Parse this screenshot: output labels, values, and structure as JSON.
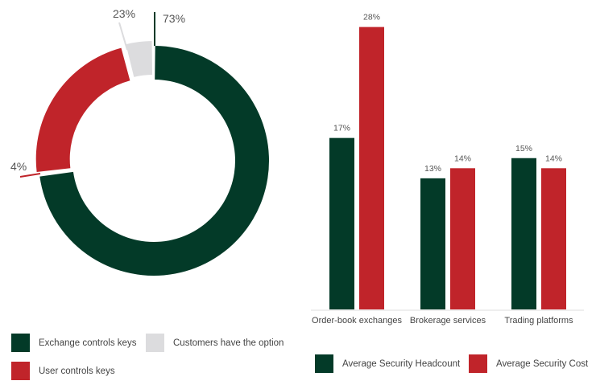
{
  "chart_data": [
    {
      "type": "pie",
      "variant": "donut",
      "labels": [
        "Exchange controls keys",
        "User controls keys",
        "Customers have the option"
      ],
      "values": [
        73,
        23,
        4
      ],
      "value_labels": [
        "73%",
        "23%",
        "4%"
      ],
      "colors": [
        "#033a28",
        "#c0242a",
        "#dcdcde"
      ],
      "legend": "bottom-left"
    },
    {
      "type": "bar",
      "categories": [
        "Order-book exchanges",
        "Brokerage services",
        "Trading platforms"
      ],
      "series": [
        {
          "name": "Average Security Headcount",
          "values": [
            17,
            13,
            15
          ],
          "labels": [
            "17%",
            "13%",
            "15%"
          ],
          "color": "#033a28"
        },
        {
          "name": "Average Security Cost",
          "values": [
            28,
            14,
            14
          ],
          "labels": [
            "28%",
            "14%",
            "14%"
          ],
          "color": "#c0242a"
        }
      ],
      "ylim": [
        0,
        28
      ],
      "grid": false,
      "legend": "bottom"
    }
  ]
}
